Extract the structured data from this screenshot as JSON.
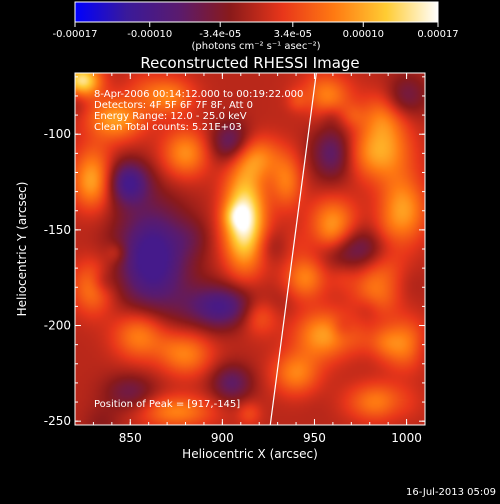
{
  "colorbar": {
    "ticks": [
      "-0.00017",
      "-0.00010",
      "-3.4e-05",
      "3.4e-05",
      "0.00010",
      "0.00017"
    ],
    "tick_values": [
      -0.00017,
      -0.0001,
      -3.4e-05,
      3.4e-05,
      0.0001,
      0.00017
    ],
    "range": [
      -0.00017,
      0.00017
    ],
    "units_label": "(photons cm⁻² s⁻¹ asec⁻²)",
    "colors": [
      "#0000ff",
      "#3a1a9a",
      "#5a1b6e",
      "#8a1a1a",
      "#e8361a",
      "#ff7a12",
      "#ffcc33",
      "#ffffff"
    ]
  },
  "chart_data": {
    "type": "heatmap",
    "title": "Reconstructed RHESSI Image",
    "xlabel": "Heliocentric X (arcsec)",
    "ylabel": "Heliocentric Y (arcsec)",
    "xlim": [
      820,
      1010
    ],
    "ylim": [
      -252,
      -68
    ],
    "x_ticks": [
      850,
      900,
      950,
      1000
    ],
    "y_ticks": [
      -100,
      -150,
      -200,
      -250
    ],
    "x_tick_labels": [
      "850",
      "900",
      "950",
      "1000"
    ],
    "y_tick_labels": [
      "-100",
      "-150",
      "-200",
      "-250"
    ],
    "annotations": [
      "8-Apr-2006 00:14:12.000 to 00:19:22.000",
      "Detectors: 4F 5F 6F 7F 8F, Att 0",
      "Energy Range: 12.0 - 25.0 keV",
      "Clean     Total counts: 5.21E+03"
    ],
    "peak_label": "Position of Peak = [917,-145]",
    "peak": [
      917,
      -145
    ],
    "limb_line": [
      [
        926,
        -252
      ],
      [
        951,
        -68
      ]
    ],
    "blobs": [
      {
        "x": 912,
        "y": -145,
        "sx": 8,
        "sy": 18,
        "a": 1.0
      },
      {
        "x": 918,
        "y": -112,
        "sx": 10,
        "sy": 8,
        "a": 0.45
      },
      {
        "x": 824,
        "y": -72,
        "sx": 7,
        "sy": 6,
        "a": 0.85
      },
      {
        "x": 842,
        "y": -92,
        "sx": 11,
        "sy": 8,
        "a": 0.55
      },
      {
        "x": 870,
        "y": -80,
        "sx": 10,
        "sy": 7,
        "a": 0.45
      },
      {
        "x": 880,
        "y": -110,
        "sx": 9,
        "sy": 9,
        "a": 0.5
      },
      {
        "x": 830,
        "y": -125,
        "sx": 8,
        "sy": 10,
        "a": 0.6
      },
      {
        "x": 955,
        "y": -80,
        "sx": 10,
        "sy": 8,
        "a": 0.5
      },
      {
        "x": 985,
        "y": -110,
        "sx": 12,
        "sy": 10,
        "a": 0.55
      },
      {
        "x": 998,
        "y": -140,
        "sx": 9,
        "sy": 12,
        "a": 0.55
      },
      {
        "x": 960,
        "y": -145,
        "sx": 9,
        "sy": 9,
        "a": 0.45
      },
      {
        "x": 945,
        "y": -175,
        "sx": 8,
        "sy": 8,
        "a": 0.45
      },
      {
        "x": 985,
        "y": -180,
        "sx": 10,
        "sy": 10,
        "a": 0.45
      },
      {
        "x": 1000,
        "y": -210,
        "sx": 9,
        "sy": 9,
        "a": 0.5
      },
      {
        "x": 955,
        "y": -205,
        "sx": 11,
        "sy": 9,
        "a": 0.55
      },
      {
        "x": 940,
        "y": -225,
        "sx": 9,
        "sy": 8,
        "a": 0.45
      },
      {
        "x": 880,
        "y": -215,
        "sx": 10,
        "sy": 8,
        "a": 0.45
      },
      {
        "x": 855,
        "y": -205,
        "sx": 10,
        "sy": 9,
        "a": 0.5
      },
      {
        "x": 830,
        "y": -180,
        "sx": 8,
        "sy": 10,
        "a": 0.45
      },
      {
        "x": 875,
        "y": -245,
        "sx": 14,
        "sy": 6,
        "a": 0.45
      },
      {
        "x": 985,
        "y": -240,
        "sx": 12,
        "sy": 7,
        "a": 0.45
      },
      {
        "x": 920,
        "y": -195,
        "sx": 7,
        "sy": 7,
        "a": 0.35
      },
      {
        "x": 935,
        "y": -125,
        "sx": 6,
        "sy": 10,
        "a": 0.4
      },
      {
        "x": 862,
        "y": -165,
        "sx": 14,
        "sy": 20,
        "a": -0.7
      },
      {
        "x": 900,
        "y": -190,
        "sx": 14,
        "sy": 8,
        "a": -0.6
      },
      {
        "x": 905,
        "y": -105,
        "sx": 8,
        "sy": 8,
        "a": -0.5
      },
      {
        "x": 960,
        "y": -110,
        "sx": 8,
        "sy": 10,
        "a": -0.45
      },
      {
        "x": 975,
        "y": -160,
        "sx": 9,
        "sy": 8,
        "a": -0.35
      },
      {
        "x": 850,
        "y": -125,
        "sx": 8,
        "sy": 8,
        "a": -0.4
      },
      {
        "x": 905,
        "y": -230,
        "sx": 8,
        "sy": 7,
        "a": -0.4
      },
      {
        "x": 1000,
        "y": -80,
        "sx": 8,
        "sy": 8,
        "a": -0.3
      },
      {
        "x": 850,
        "y": -235,
        "sx": 10,
        "sy": 7,
        "a": -0.3
      }
    ]
  },
  "timestamp": "16-Jul-2013 05:09"
}
